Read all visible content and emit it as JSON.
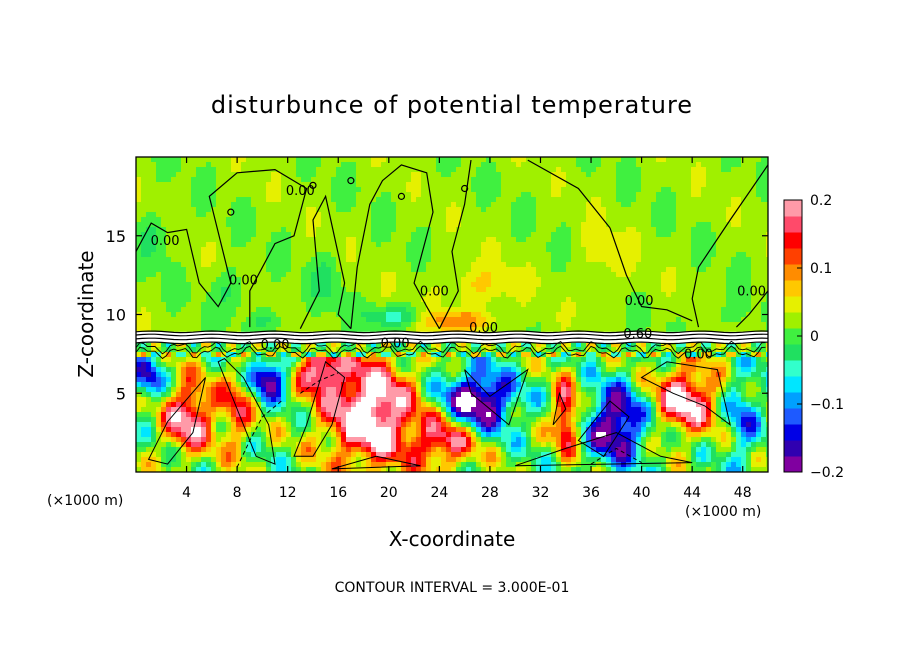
{
  "chart_data": {
    "type": "heatmap",
    "title": "disturbunce of potential temperature",
    "xlabel": "X-coordinate",
    "ylabel": "Z-coordinate",
    "x_unit": "(×1000 m)",
    "x_unit_right": "(×1000 m)",
    "footer": "CONTOUR INTERVAL = 3.000E-01",
    "xlim": [
      0,
      50
    ],
    "ylim": [
      0,
      20
    ],
    "x_ticks": [
      "4",
      "8",
      "12",
      "16",
      "20",
      "24",
      "28",
      "32",
      "36",
      "40",
      "44",
      "48"
    ],
    "x_tick_values": [
      4,
      8,
      12,
      16,
      20,
      24,
      28,
      32,
      36,
      40,
      44,
      48
    ],
    "y_ticks": [
      "5",
      "10",
      "15"
    ],
    "y_tick_values": [
      5,
      10,
      15
    ],
    "colorbar": {
      "min": -0.2,
      "max": 0.2,
      "ticks": [
        "0.2",
        "0.1",
        "0",
        "−0.1",
        "−0.2"
      ],
      "tick_values": [
        0.2,
        0.1,
        0,
        -0.1,
        -0.2
      ],
      "colors": [
        "#8000a0",
        "#3000b0",
        "#0000e6",
        "#1e5aff",
        "#00a0ff",
        "#00e6ff",
        "#32ffcc",
        "#20e060",
        "#40f040",
        "#a0f000",
        "#e6f000",
        "#ffc800",
        "#ff8c00",
        "#ff4000",
        "#ff0000",
        "#ff4a6a",
        "#ff9aa8"
      ]
    },
    "contour_labels": [
      "0.00",
      "0.00",
      "0.00",
      "0.00",
      "0.00",
      "0.00",
      "0.00",
      "0.00",
      "0.60",
      "0.00",
      "0.00"
    ]
  }
}
